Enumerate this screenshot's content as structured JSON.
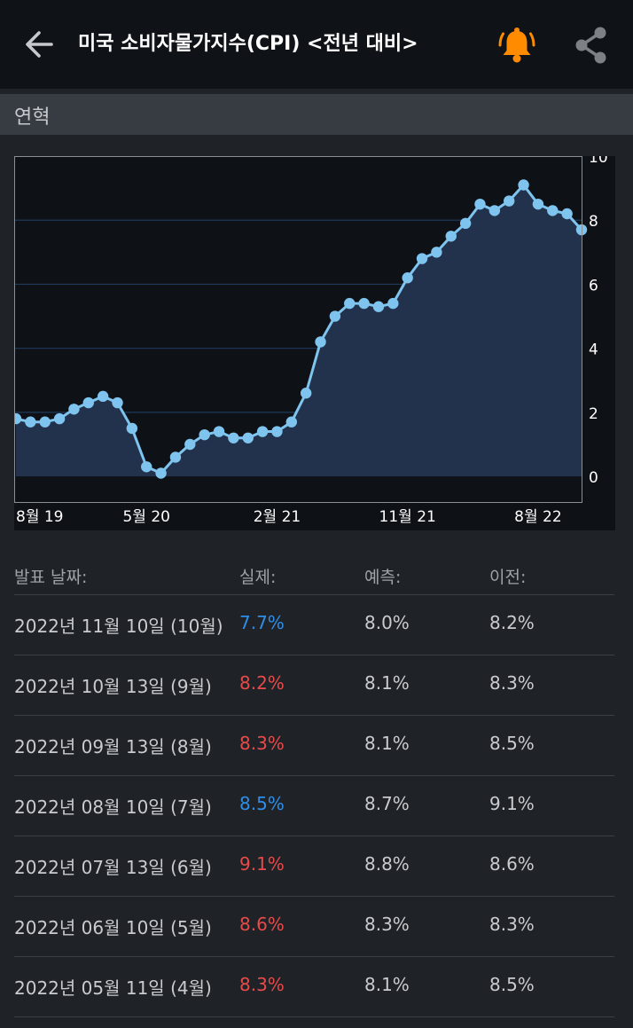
{
  "header": {
    "title": "미국 소비자물가지수(CPI) <전년 대비>",
    "alert_icon": "bell-icon",
    "share_icon": "share-icon",
    "alert_color": "#ff8c00"
  },
  "section": {
    "label": "연혁"
  },
  "chart_data": {
    "type": "area",
    "x_tick_labels": [
      "8월 19",
      "5월 20",
      "2월 21",
      "11월 21",
      "8월 22"
    ],
    "y_ticks": [
      0,
      2,
      4,
      6,
      8,
      10
    ],
    "ylim": [
      -0.8,
      10
    ],
    "grid": true,
    "line_color": "#7ec4ee",
    "fill_color": "#22324c",
    "series": [
      {
        "values": [
          1.8,
          1.7,
          1.7,
          1.8,
          2.1,
          2.3,
          2.5,
          2.3,
          1.5,
          0.3,
          0.1,
          0.6,
          1.0,
          1.3,
          1.4,
          1.2,
          1.2,
          1.4,
          1.4,
          1.7,
          2.6,
          4.2,
          5.0,
          5.4,
          5.4,
          5.3,
          5.4,
          6.2,
          6.8,
          7.0,
          7.5,
          7.9,
          8.5,
          8.3,
          8.6,
          9.1,
          8.5,
          8.3,
          8.2,
          7.7
        ]
      }
    ]
  },
  "table": {
    "headers": [
      "발표 날짜:",
      "실제:",
      "예측:",
      "이전:"
    ],
    "rows": [
      {
        "date": "2022년 11월 10일 (10월)",
        "actual": "7.7%",
        "actual_color": "#2f8ee8",
        "forecast": "8.0%",
        "previous": "8.2%"
      },
      {
        "date": "2022년 10월 13일 (9월)",
        "actual": "8.2%",
        "actual_color": "#e84a4a",
        "forecast": "8.1%",
        "previous": "8.3%"
      },
      {
        "date": "2022년 09월 13일 (8월)",
        "actual": "8.3%",
        "actual_color": "#e84a4a",
        "forecast": "8.1%",
        "previous": "8.5%"
      },
      {
        "date": "2022년 08월 10일 (7월)",
        "actual": "8.5%",
        "actual_color": "#2f8ee8",
        "forecast": "8.7%",
        "previous": "9.1%"
      },
      {
        "date": "2022년 07월 13일 (6월)",
        "actual": "9.1%",
        "actual_color": "#e84a4a",
        "forecast": "8.8%",
        "previous": "8.6%"
      },
      {
        "date": "2022년 06월 10일 (5월)",
        "actual": "8.6%",
        "actual_color": "#e84a4a",
        "forecast": "8.3%",
        "previous": "8.3%"
      },
      {
        "date": "2022년 05월 11일 (4월)",
        "actual": "8.3%",
        "actual_color": "#e84a4a",
        "forecast": "8.1%",
        "previous": "8.5%"
      }
    ]
  }
}
